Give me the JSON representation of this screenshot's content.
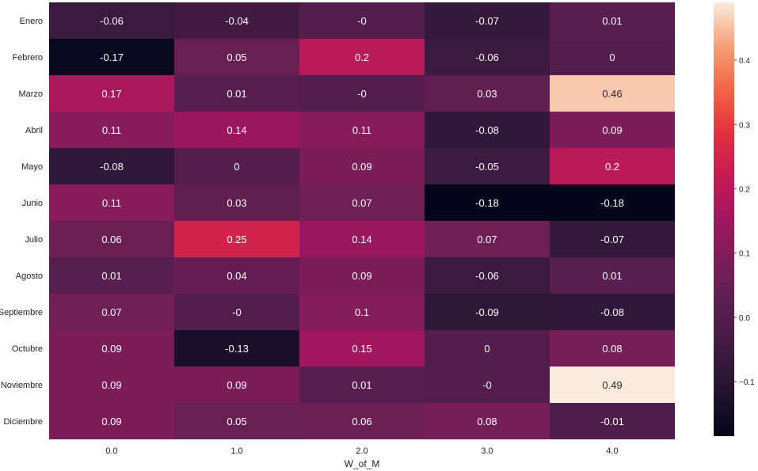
{
  "chart_data": {
    "type": "heatmap",
    "xlabel": "W_of_M",
    "ylabel": "",
    "x_categories": [
      "0.0",
      "1.0",
      "2.0",
      "3.0",
      "4.0"
    ],
    "y_categories": [
      "Enero",
      "Febrero",
      "Marzo",
      "Abril",
      "Mayo",
      "Junio",
      "Julio",
      "Agosto",
      "Septiembre",
      "Octubre",
      "Noviembre",
      "Diciembre"
    ],
    "values": [
      [
        -0.06,
        -0.04,
        -0.0,
        -0.07,
        0.01
      ],
      [
        -0.17,
        0.05,
        0.2,
        -0.06,
        0.0
      ],
      [
        0.17,
        0.01,
        -0.0,
        0.03,
        0.46
      ],
      [
        0.11,
        0.14,
        0.11,
        -0.08,
        0.09
      ],
      [
        -0.08,
        0.0,
        0.09,
        -0.05,
        0.2
      ],
      [
        0.11,
        0.03,
        0.07,
        -0.18,
        -0.18
      ],
      [
        0.06,
        0.25,
        0.14,
        0.07,
        -0.07
      ],
      [
        0.01,
        0.04,
        0.09,
        -0.06,
        0.01
      ],
      [
        0.07,
        -0.0,
        0.1,
        -0.09,
        -0.08
      ],
      [
        0.09,
        -0.13,
        0.15,
        0.0,
        0.08
      ],
      [
        0.09,
        0.09,
        0.01,
        -0.0,
        0.49
      ],
      [
        0.09,
        0.05,
        0.06,
        0.08,
        -0.01
      ]
    ],
    "cell_labels": [
      [
        "-0.06",
        "-0.04",
        "-0",
        "-0.07",
        "0.01"
      ],
      [
        "-0.17",
        "0.05",
        "0.2",
        "-0.06",
        "0"
      ],
      [
        "0.17",
        "0.01",
        "-0",
        "0.03",
        "0.46"
      ],
      [
        "0.11",
        "0.14",
        "0.11",
        "-0.08",
        "0.09"
      ],
      [
        "-0.08",
        "0",
        "0.09",
        "-0.05",
        "0.2"
      ],
      [
        "0.11",
        "0.03",
        "0.07",
        "-0.18",
        "-0.18"
      ],
      [
        "0.06",
        "0.25",
        "0.14",
        "0.07",
        "-0.07"
      ],
      [
        "0.01",
        "0.04",
        "0.09",
        "-0.06",
        "0.01"
      ],
      [
        "0.07",
        "-0",
        "0.1",
        "-0.09",
        "-0.08"
      ],
      [
        "0.09",
        "-0.13",
        "0.15",
        "0",
        "0.08"
      ],
      [
        "0.09",
        "0.09",
        "0.01",
        "-0",
        "0.49"
      ],
      [
        "0.09",
        "0.05",
        "0.06",
        "0.08",
        "-0.01"
      ]
    ],
    "colorbar": {
      "range": [
        -0.185,
        0.49
      ],
      "ticks": [
        -0.1,
        0.0,
        0.1,
        0.2,
        0.3,
        0.4
      ],
      "tick_labels": [
        "−0.1",
        "0.0",
        "0.1",
        "0.2",
        "0.3",
        "0.4"
      ],
      "colormap": "rocket",
      "placement": "right"
    },
    "grid": false
  }
}
